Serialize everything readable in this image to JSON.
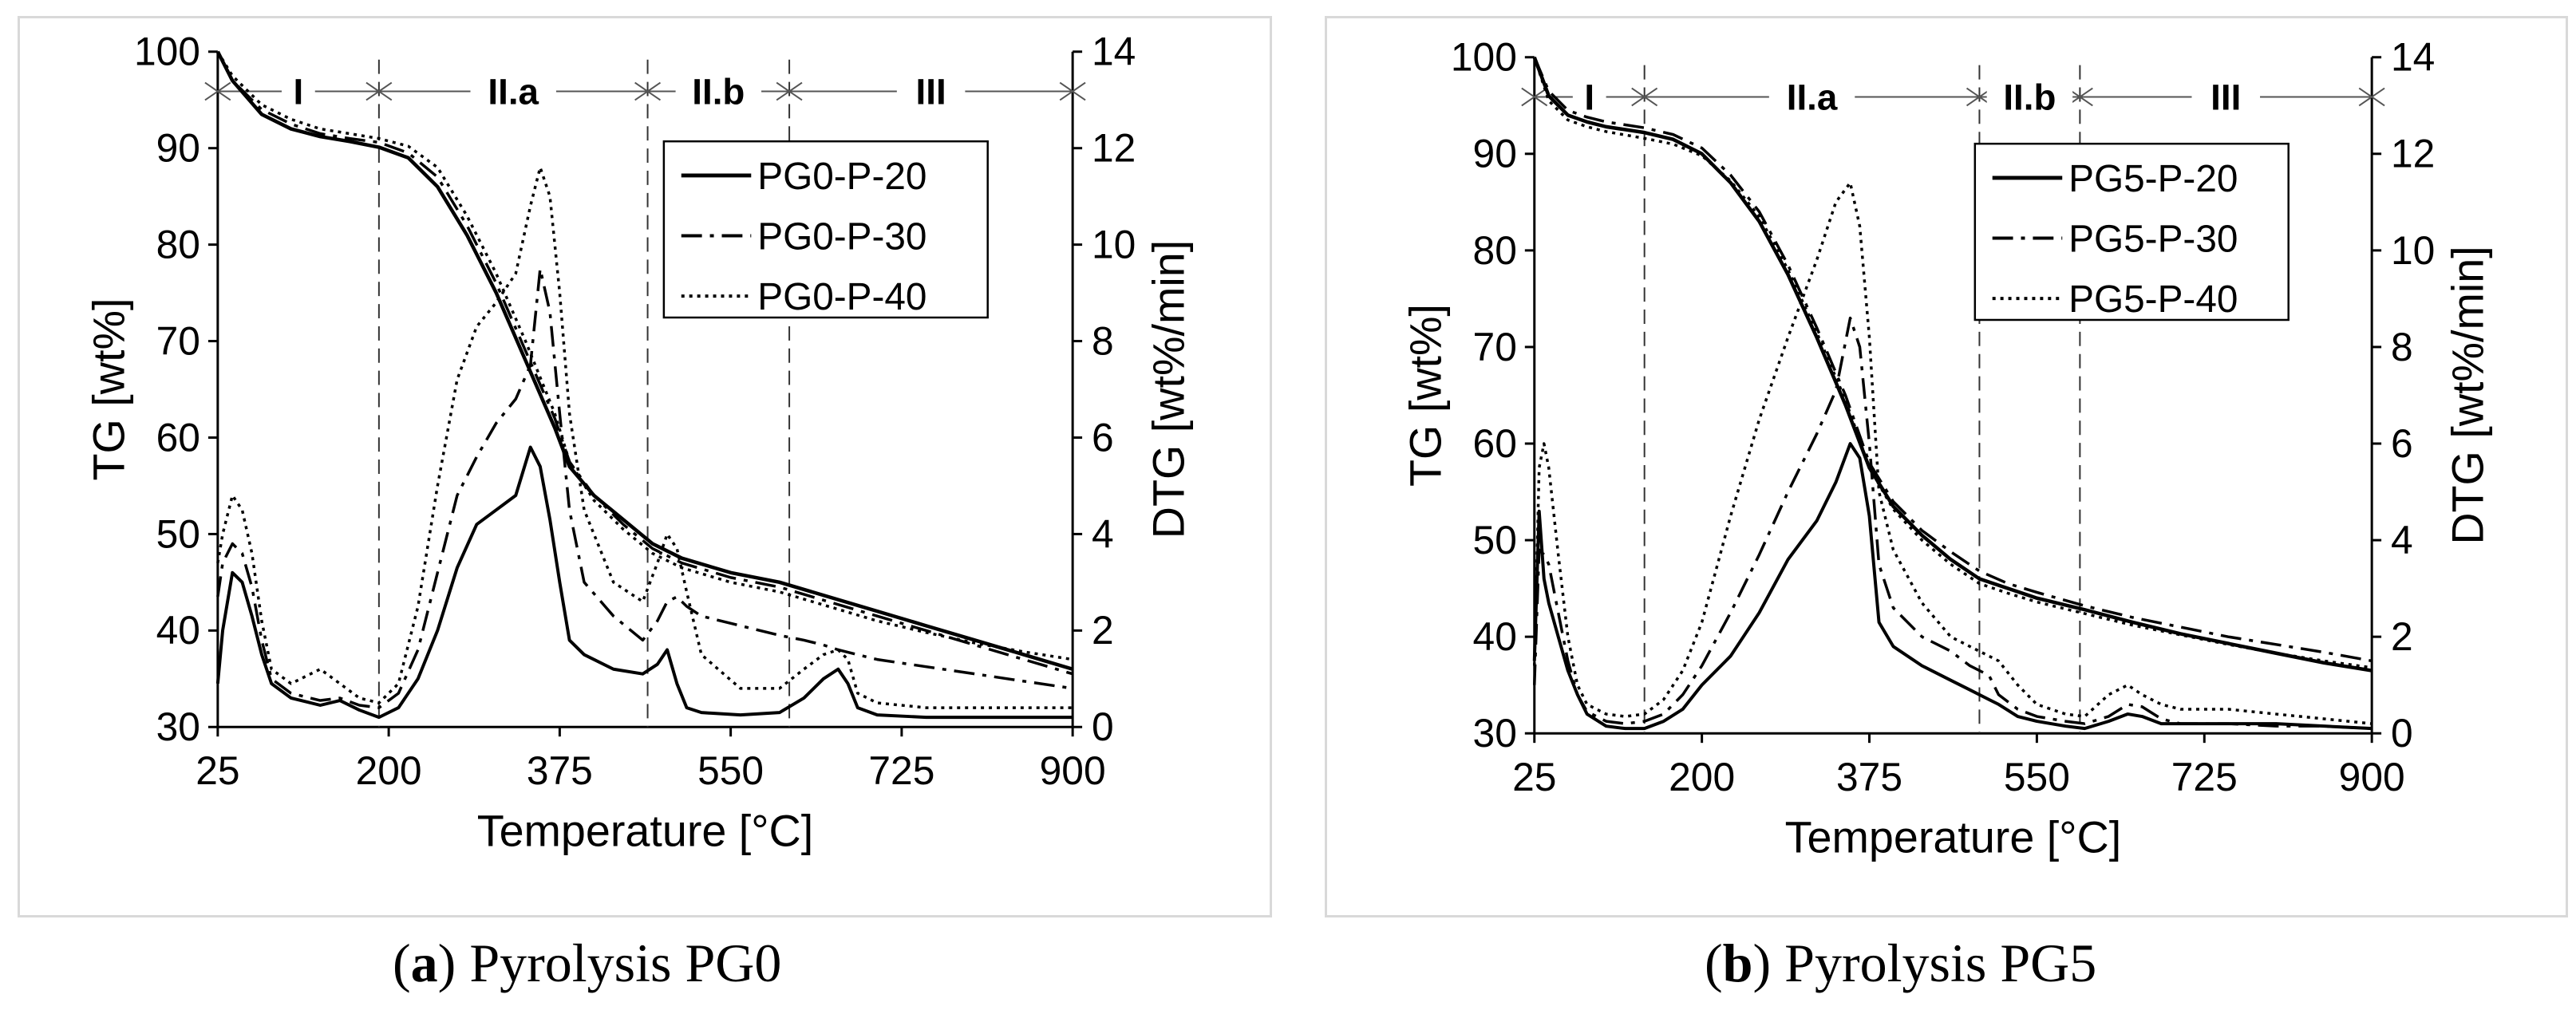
{
  "chart_data": [
    {
      "type": "line",
      "panel_id": "a",
      "caption_label": "a",
      "caption_text": "Pyrolysis PG0",
      "xlabel": "Temperature [°C]",
      "ylabel": "TG [wt%]",
      "y2label": "DTG [wt%/min]",
      "xlim": [
        25,
        900
      ],
      "ylim": [
        30,
        100
      ],
      "y2lim": [
        0,
        14
      ],
      "xticks": [
        25,
        200,
        375,
        550,
        725,
        900
      ],
      "yticks": [
        30,
        40,
        50,
        60,
        70,
        80,
        90,
        100
      ],
      "y2ticks": [
        0,
        2,
        4,
        6,
        8,
        10,
        12,
        14
      ],
      "stage_boundaries": [
        190,
        465,
        610
      ],
      "stages": [
        {
          "label": "I",
          "from": 25,
          "to": 190
        },
        {
          "label": "II.a",
          "from": 190,
          "to": 465
        },
        {
          "label": "II.b",
          "from": 465,
          "to": 610
        },
        {
          "label": "III",
          "from": 610,
          "to": 900
        }
      ],
      "legend": [
        "PG0-P-20",
        "PG0-P-30",
        "PG0-P-40"
      ],
      "tg_series": [
        {
          "name": "PG0-P-20",
          "style": "solid",
          "x": [
            25,
            40,
            70,
            100,
            130,
            160,
            190,
            220,
            250,
            280,
            310,
            340,
            370,
            385,
            410,
            440,
            470,
            500,
            550,
            600,
            650,
            700,
            750,
            800,
            850,
            900
          ],
          "values": [
            100,
            97,
            93.5,
            92,
            91.2,
            90.7,
            90.1,
            89,
            86,
            81,
            75,
            68,
            61,
            57,
            54,
            51.5,
            49,
            47.5,
            46,
            45,
            43.5,
            42,
            40.5,
            39,
            37.5,
            36
          ]
        },
        {
          "name": "PG0-P-30",
          "style": "dashdot",
          "x": [
            25,
            40,
            70,
            100,
            130,
            160,
            190,
            220,
            250,
            280,
            310,
            340,
            370,
            385,
            410,
            440,
            470,
            500,
            550,
            600,
            650,
            700,
            750,
            800,
            850,
            900
          ],
          "values": [
            100,
            97,
            94,
            92.5,
            91.5,
            91,
            90.6,
            89.5,
            87,
            82,
            76,
            69,
            62,
            57.5,
            54,
            51,
            48.5,
            47,
            45.5,
            44.5,
            43,
            41.5,
            40,
            38.5,
            37,
            35.5
          ]
        },
        {
          "name": "PG0-P-40",
          "style": "dotted",
          "x": [
            25,
            40,
            70,
            100,
            130,
            160,
            190,
            220,
            250,
            280,
            310,
            340,
            370,
            385,
            410,
            440,
            470,
            500,
            550,
            600,
            650,
            700,
            750,
            800,
            850,
            900
          ],
          "values": [
            100,
            97.5,
            94.5,
            93,
            92,
            91.5,
            91,
            90.2,
            88,
            83,
            77,
            70,
            62.5,
            57.5,
            53.5,
            50.5,
            48,
            46.5,
            45,
            44,
            42.5,
            41,
            39.8,
            38.7,
            37.8,
            37
          ]
        }
      ],
      "dtg_series": [
        {
          "name": "PG0-P-20",
          "style": "solid",
          "x": [
            25,
            30,
            40,
            50,
            60,
            70,
            80,
            100,
            130,
            150,
            170,
            190,
            210,
            230,
            250,
            270,
            290,
            310,
            330,
            345,
            355,
            365,
            375,
            385,
            400,
            430,
            460,
            475,
            485,
            495,
            505,
            520,
            560,
            600,
            625,
            645,
            660,
            670,
            680,
            700,
            750,
            800,
            850,
            900
          ],
          "values": [
            0.9,
            2.0,
            3.2,
            3.0,
            2.3,
            1.5,
            0.9,
            0.6,
            0.45,
            0.55,
            0.35,
            0.2,
            0.4,
            1.0,
            2.0,
            3.3,
            4.2,
            4.5,
            4.8,
            5.8,
            5.4,
            4.3,
            3.0,
            1.8,
            1.5,
            1.2,
            1.1,
            1.3,
            1.6,
            0.9,
            0.4,
            0.3,
            0.25,
            0.3,
            0.6,
            1.0,
            1.2,
            0.9,
            0.4,
            0.25,
            0.2,
            0.2,
            0.2,
            0.2
          ]
        },
        {
          "name": "PG0-P-30",
          "style": "dashdot",
          "x": [
            25,
            30,
            40,
            50,
            60,
            70,
            80,
            100,
            130,
            150,
            170,
            190,
            210,
            230,
            250,
            270,
            290,
            310,
            330,
            345,
            355,
            365,
            375,
            385,
            400,
            430,
            460,
            475,
            485,
            495,
            505,
            520,
            560,
            600,
            625,
            645,
            660,
            670,
            680,
            690,
            700,
            750,
            800,
            850,
            900
          ],
          "values": [
            2.7,
            3.4,
            3.8,
            3.6,
            2.9,
            1.8,
            1.0,
            0.7,
            0.55,
            0.6,
            0.45,
            0.4,
            0.7,
            1.6,
            3.2,
            4.8,
            5.6,
            6.3,
            6.8,
            7.5,
            9.5,
            8.6,
            6.5,
            4.5,
            3.0,
            2.3,
            1.8,
            2.2,
            2.6,
            2.7,
            2.5,
            2.3,
            2.1,
            1.9,
            1.8,
            1.7,
            1.6,
            1.55,
            1.5,
            1.45,
            1.4,
            1.25,
            1.1,
            0.95,
            0.8
          ]
        },
        {
          "name": "PG0-P-40",
          "style": "dotted",
          "x": [
            25,
            30,
            40,
            50,
            60,
            70,
            80,
            100,
            130,
            150,
            170,
            190,
            210,
            230,
            250,
            270,
            290,
            310,
            330,
            345,
            355,
            365,
            375,
            385,
            400,
            430,
            460,
            475,
            485,
            495,
            505,
            520,
            560,
            600,
            625,
            645,
            660,
            670,
            680,
            700,
            750,
            800,
            850,
            900
          ],
          "values": [
            3.4,
            4.0,
            4.8,
            4.5,
            3.6,
            2.2,
            1.2,
            0.9,
            1.2,
            0.9,
            0.6,
            0.5,
            0.9,
            2.5,
            5.0,
            7.2,
            8.3,
            8.8,
            9.4,
            10.8,
            11.6,
            11.0,
            9.0,
            6.5,
            4.5,
            3.0,
            2.6,
            3.4,
            4.0,
            3.7,
            2.8,
            1.5,
            0.8,
            0.8,
            1.2,
            1.5,
            1.6,
            1.4,
            0.7,
            0.5,
            0.4,
            0.4,
            0.4,
            0.4
          ]
        }
      ]
    },
    {
      "type": "line",
      "panel_id": "b",
      "caption_label": "b",
      "caption_text": "Pyrolysis PG5",
      "xlabel": "Temperature [°C]",
      "ylabel": "TG [wt%]",
      "y2label": "DTG [wt%/min]",
      "xlim": [
        25,
        900
      ],
      "ylim": [
        30,
        100
      ],
      "y2lim": [
        0,
        14
      ],
      "xticks": [
        25,
        200,
        375,
        550,
        725,
        900
      ],
      "yticks": [
        30,
        40,
        50,
        60,
        70,
        80,
        90,
        100
      ],
      "y2ticks": [
        0,
        2,
        4,
        6,
        8,
        10,
        12,
        14
      ],
      "stage_boundaries": [
        140,
        490,
        595
      ],
      "stages": [
        {
          "label": "I",
          "from": 25,
          "to": 140
        },
        {
          "label": "II.a",
          "from": 140,
          "to": 490
        },
        {
          "label": "II.b",
          "from": 490,
          "to": 595
        },
        {
          "label": "III",
          "from": 595,
          "to": 900
        }
      ],
      "legend": [
        "PG5-P-20",
        "PG5-P-30",
        "PG5-P-40"
      ],
      "tg_series": [
        {
          "name": "PG5-P-20",
          "style": "solid",
          "x": [
            25,
            40,
            60,
            80,
            100,
            140,
            170,
            200,
            230,
            260,
            290,
            320,
            350,
            375,
            400,
            430,
            460,
            490,
            520,
            550,
            600,
            650,
            700,
            750,
            800,
            850,
            900
          ],
          "values": [
            100,
            96,
            94,
            93.3,
            92.8,
            92.2,
            91.5,
            90,
            87,
            83,
            77.5,
            71,
            64,
            57.5,
            53.5,
            50.5,
            48,
            46,
            45,
            44,
            42.8,
            41.5,
            40.3,
            39.3,
            38.3,
            37.3,
            36.5
          ]
        },
        {
          "name": "PG5-P-30",
          "style": "dashdot",
          "x": [
            25,
            40,
            60,
            80,
            100,
            140,
            170,
            200,
            230,
            260,
            290,
            320,
            350,
            375,
            400,
            430,
            460,
            490,
            520,
            550,
            600,
            650,
            700,
            750,
            800,
            850,
            900
          ],
          "values": [
            100,
            96.5,
            94.5,
            93.8,
            93.3,
            92.7,
            92,
            90.6,
            87.8,
            84,
            78.5,
            72,
            65,
            58,
            54,
            51,
            48.8,
            46.8,
            45.5,
            44.6,
            43.2,
            42,
            41,
            40,
            39.2,
            38.4,
            37.5
          ]
        },
        {
          "name": "PG5-P-40",
          "style": "dotted",
          "x": [
            25,
            40,
            60,
            80,
            100,
            140,
            170,
            200,
            230,
            260,
            290,
            320,
            350,
            375,
            400,
            430,
            460,
            490,
            520,
            550,
            600,
            650,
            700,
            750,
            800,
            850,
            900
          ],
          "values": [
            100,
            95.5,
            93.5,
            92.8,
            92.3,
            91.6,
            91,
            89.8,
            87.2,
            83.5,
            78,
            71.5,
            64.5,
            57.5,
            53.2,
            50,
            47.5,
            45.5,
            44.5,
            43.6,
            42.4,
            41.2,
            40.2,
            39.2,
            38.3,
            37.5,
            36.8
          ]
        }
      ],
      "dtg_series": [
        {
          "name": "PG5-P-20",
          "style": "solid",
          "x": [
            25,
            30,
            35,
            40,
            50,
            60,
            70,
            80,
            100,
            120,
            140,
            160,
            180,
            200,
            230,
            260,
            290,
            320,
            340,
            355,
            365,
            375,
            385,
            400,
            430,
            460,
            480,
            500,
            510,
            530,
            550,
            580,
            600,
            625,
            645,
            660,
            680,
            700,
            750,
            800,
            850,
            900
          ],
          "values": [
            1.5,
            4.6,
            3.2,
            2.7,
            2.0,
            1.3,
            0.8,
            0.4,
            0.15,
            0.1,
            0.1,
            0.25,
            0.5,
            1.0,
            1.6,
            2.5,
            3.6,
            4.4,
            5.2,
            6.0,
            5.7,
            4.5,
            2.3,
            1.8,
            1.4,
            1.1,
            0.9,
            0.7,
            0.6,
            0.35,
            0.25,
            0.15,
            0.1,
            0.25,
            0.4,
            0.35,
            0.2,
            0.2,
            0.2,
            0.2,
            0.15,
            0.1
          ]
        },
        {
          "name": "PG5-P-30",
          "style": "dashdot",
          "x": [
            25,
            30,
            35,
            40,
            50,
            60,
            70,
            80,
            100,
            120,
            140,
            160,
            180,
            200,
            230,
            260,
            290,
            320,
            340,
            355,
            365,
            375,
            385,
            400,
            430,
            460,
            480,
            500,
            510,
            530,
            550,
            580,
            600,
            625,
            645,
            660,
            680,
            700,
            750,
            800,
            850,
            900
          ],
          "values": [
            1.0,
            3.8,
            3.7,
            3.5,
            2.5,
            1.5,
            0.8,
            0.45,
            0.25,
            0.2,
            0.25,
            0.4,
            0.8,
            1.4,
            2.5,
            3.7,
            5.0,
            6.2,
            7.1,
            8.6,
            8.0,
            6.0,
            3.5,
            2.6,
            2.0,
            1.7,
            1.4,
            1.2,
            0.8,
            0.5,
            0.35,
            0.25,
            0.2,
            0.35,
            0.6,
            0.55,
            0.3,
            0.2,
            0.2,
            0.15,
            0.15,
            0.1
          ]
        },
        {
          "name": "PG5-P-40",
          "style": "dotted",
          "x": [
            25,
            30,
            35,
            40,
            50,
            60,
            70,
            80,
            100,
            120,
            140,
            160,
            180,
            200,
            230,
            260,
            290,
            320,
            340,
            355,
            365,
            375,
            385,
            400,
            430,
            460,
            480,
            500,
            510,
            530,
            550,
            580,
            600,
            625,
            645,
            660,
            680,
            700,
            750,
            800,
            850,
            900
          ],
          "values": [
            1.4,
            5.5,
            6.0,
            5.5,
            3.7,
            2.0,
            1.0,
            0.6,
            0.4,
            0.35,
            0.4,
            0.7,
            1.3,
            2.3,
            4.5,
            6.5,
            8.2,
            9.8,
            11.0,
            11.4,
            10.5,
            8.2,
            5.0,
            3.8,
            2.7,
            2.0,
            1.8,
            1.6,
            1.5,
            1.0,
            0.6,
            0.4,
            0.35,
            0.8,
            1.0,
            0.8,
            0.6,
            0.5,
            0.5,
            0.4,
            0.3,
            0.2
          ]
        }
      ]
    }
  ]
}
